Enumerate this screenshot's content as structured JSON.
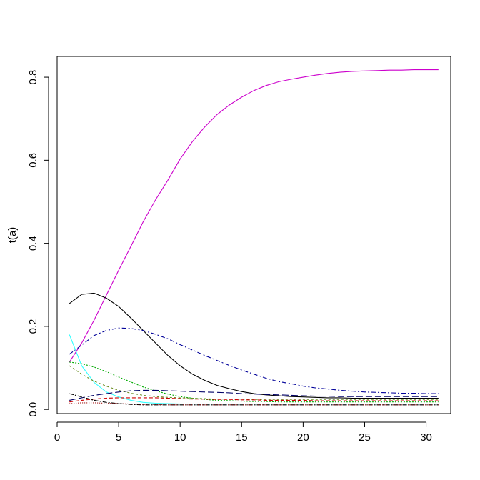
{
  "chart_data": {
    "type": "line",
    "title": "",
    "xlabel": "",
    "ylabel": "t(a)",
    "xlim": [
      0,
      32
    ],
    "ylim": [
      -0.01,
      0.85
    ],
    "x_ticks": [
      0,
      5,
      10,
      15,
      20,
      25,
      30
    ],
    "y_ticks": [
      0.0,
      0.2,
      0.4,
      0.6,
      0.8
    ],
    "x_tick_labels": [
      "0",
      "5",
      "10",
      "15",
      "20",
      "25",
      "30"
    ],
    "y_tick_labels": [
      "0.0",
      "0.2",
      "0.4",
      "0.6",
      "0.8"
    ],
    "grid": false,
    "legend": "none",
    "series": [
      {
        "color": "#cc00cc",
        "dash": "",
        "points": [
          [
            1,
            0.114
          ],
          [
            2,
            0.16
          ],
          [
            3,
            0.215
          ],
          [
            4,
            0.275
          ],
          [
            5,
            0.335
          ],
          [
            6,
            0.393
          ],
          [
            7,
            0.452
          ],
          [
            8,
            0.505
          ],
          [
            9,
            0.552
          ],
          [
            10,
            0.603
          ],
          [
            11,
            0.645
          ],
          [
            12,
            0.68
          ],
          [
            13,
            0.71
          ],
          [
            14,
            0.733
          ],
          [
            15,
            0.752
          ],
          [
            16,
            0.768
          ],
          [
            17,
            0.78
          ],
          [
            18,
            0.789
          ],
          [
            19,
            0.795
          ],
          [
            20,
            0.8
          ],
          [
            21,
            0.805
          ],
          [
            22,
            0.809
          ],
          [
            23,
            0.812
          ],
          [
            24,
            0.814
          ],
          [
            25,
            0.815
          ],
          [
            26,
            0.816
          ],
          [
            27,
            0.817
          ],
          [
            28,
            0.817
          ],
          [
            29,
            0.818
          ],
          [
            30,
            0.818
          ],
          [
            31,
            0.818
          ]
        ]
      },
      {
        "color": "#000000",
        "dash": "",
        "points": [
          [
            1,
            0.255
          ],
          [
            2,
            0.277
          ],
          [
            3,
            0.28
          ],
          [
            4,
            0.268
          ],
          [
            5,
            0.248
          ],
          [
            6,
            0.22
          ],
          [
            7,
            0.19
          ],
          [
            8,
            0.16
          ],
          [
            9,
            0.13
          ],
          [
            10,
            0.105
          ],
          [
            11,
            0.085
          ],
          [
            12,
            0.07
          ],
          [
            13,
            0.058
          ],
          [
            14,
            0.05
          ],
          [
            15,
            0.043
          ],
          [
            16,
            0.038
          ],
          [
            17,
            0.035
          ],
          [
            18,
            0.033
          ],
          [
            19,
            0.031
          ],
          [
            20,
            0.03
          ],
          [
            21,
            0.029
          ],
          [
            22,
            0.028
          ],
          [
            23,
            0.028
          ],
          [
            24,
            0.027
          ],
          [
            25,
            0.027
          ],
          [
            26,
            0.027
          ],
          [
            27,
            0.027
          ],
          [
            28,
            0.027
          ],
          [
            29,
            0.027
          ],
          [
            30,
            0.027
          ],
          [
            31,
            0.027
          ]
        ]
      },
      {
        "color": "#000099",
        "dash": "6,3,2,3",
        "points": [
          [
            1,
            0.133
          ],
          [
            2,
            0.155
          ],
          [
            3,
            0.178
          ],
          [
            4,
            0.19
          ],
          [
            5,
            0.196
          ],
          [
            6,
            0.195
          ],
          [
            7,
            0.19
          ],
          [
            8,
            0.181
          ],
          [
            9,
            0.17
          ],
          [
            10,
            0.156
          ],
          [
            11,
            0.143
          ],
          [
            12,
            0.13
          ],
          [
            13,
            0.118
          ],
          [
            14,
            0.106
          ],
          [
            15,
            0.095
          ],
          [
            16,
            0.085
          ],
          [
            17,
            0.075
          ],
          [
            18,
            0.067
          ],
          [
            19,
            0.062
          ],
          [
            20,
            0.056
          ],
          [
            21,
            0.052
          ],
          [
            22,
            0.049
          ],
          [
            23,
            0.046
          ],
          [
            24,
            0.044
          ],
          [
            25,
            0.042
          ],
          [
            26,
            0.041
          ],
          [
            27,
            0.04
          ],
          [
            28,
            0.039
          ],
          [
            29,
            0.039
          ],
          [
            30,
            0.038
          ],
          [
            31,
            0.038
          ]
        ]
      },
      {
        "color": "#33ffff",
        "dash": "",
        "points": [
          [
            1,
            0.18
          ],
          [
            2,
            0.105
          ],
          [
            3,
            0.065
          ],
          [
            4,
            0.042
          ],
          [
            5,
            0.03
          ],
          [
            6,
            0.022
          ],
          [
            7,
            0.017
          ],
          [
            8,
            0.015
          ],
          [
            9,
            0.014
          ],
          [
            10,
            0.013
          ],
          [
            11,
            0.013
          ],
          [
            12,
            0.013
          ],
          [
            13,
            0.013
          ],
          [
            14,
            0.013
          ],
          [
            15,
            0.013
          ],
          [
            16,
            0.013
          ],
          [
            17,
            0.013
          ],
          [
            18,
            0.013
          ],
          [
            19,
            0.013
          ],
          [
            20,
            0.013
          ],
          [
            21,
            0.013
          ],
          [
            22,
            0.013
          ],
          [
            23,
            0.013
          ],
          [
            24,
            0.013
          ],
          [
            25,
            0.013
          ],
          [
            26,
            0.013
          ],
          [
            27,
            0.013
          ],
          [
            28,
            0.013
          ],
          [
            29,
            0.013
          ],
          [
            30,
            0.013
          ],
          [
            31,
            0.013
          ]
        ]
      },
      {
        "color": "#00aa00",
        "dash": "2,2",
        "points": [
          [
            1,
            0.114
          ],
          [
            2,
            0.11
          ],
          [
            3,
            0.102
          ],
          [
            4,
            0.091
          ],
          [
            5,
            0.078
          ],
          [
            6,
            0.066
          ],
          [
            7,
            0.054
          ],
          [
            8,
            0.045
          ],
          [
            9,
            0.037
          ],
          [
            10,
            0.031
          ],
          [
            11,
            0.027
          ],
          [
            12,
            0.024
          ],
          [
            13,
            0.022
          ],
          [
            14,
            0.021
          ],
          [
            15,
            0.02
          ],
          [
            16,
            0.019
          ],
          [
            17,
            0.019
          ],
          [
            18,
            0.018
          ],
          [
            19,
            0.018
          ],
          [
            20,
            0.018
          ],
          [
            21,
            0.018
          ],
          [
            22,
            0.018
          ],
          [
            23,
            0.018
          ],
          [
            24,
            0.018
          ],
          [
            25,
            0.018
          ],
          [
            26,
            0.018
          ],
          [
            27,
            0.018
          ],
          [
            28,
            0.018
          ],
          [
            29,
            0.018
          ],
          [
            30,
            0.018
          ],
          [
            31,
            0.018
          ]
        ]
      },
      {
        "color": "#6b8e23",
        "dash": "3,3",
        "points": [
          [
            1,
            0.105
          ],
          [
            2,
            0.085
          ],
          [
            3,
            0.068
          ],
          [
            4,
            0.056
          ],
          [
            5,
            0.046
          ],
          [
            6,
            0.039
          ],
          [
            7,
            0.034
          ],
          [
            8,
            0.031
          ],
          [
            9,
            0.029
          ],
          [
            10,
            0.028
          ],
          [
            11,
            0.027
          ],
          [
            12,
            0.026
          ],
          [
            13,
            0.025
          ],
          [
            14,
            0.025
          ],
          [
            15,
            0.025
          ],
          [
            16,
            0.024
          ],
          [
            17,
            0.024
          ],
          [
            18,
            0.024
          ],
          [
            19,
            0.024
          ],
          [
            20,
            0.024
          ],
          [
            21,
            0.024
          ],
          [
            22,
            0.024
          ],
          [
            23,
            0.024
          ],
          [
            24,
            0.024
          ],
          [
            25,
            0.024
          ],
          [
            26,
            0.024
          ],
          [
            27,
            0.024
          ],
          [
            28,
            0.024
          ],
          [
            29,
            0.024
          ],
          [
            30,
            0.024
          ],
          [
            31,
            0.024
          ]
        ]
      },
      {
        "color": "#000066",
        "dash": "9,4",
        "points": [
          [
            1,
            0.022
          ],
          [
            2,
            0.028
          ],
          [
            3,
            0.034
          ],
          [
            4,
            0.038
          ],
          [
            5,
            0.042
          ],
          [
            6,
            0.045
          ],
          [
            7,
            0.046
          ],
          [
            8,
            0.046
          ],
          [
            9,
            0.045
          ],
          [
            10,
            0.044
          ],
          [
            11,
            0.043
          ],
          [
            12,
            0.042
          ],
          [
            13,
            0.041
          ],
          [
            14,
            0.04
          ],
          [
            15,
            0.038
          ],
          [
            16,
            0.037
          ],
          [
            17,
            0.036
          ],
          [
            18,
            0.035
          ],
          [
            19,
            0.034
          ],
          [
            20,
            0.033
          ],
          [
            21,
            0.032
          ],
          [
            22,
            0.032
          ],
          [
            23,
            0.031
          ],
          [
            24,
            0.031
          ],
          [
            25,
            0.031
          ],
          [
            26,
            0.031
          ],
          [
            27,
            0.031
          ],
          [
            28,
            0.031
          ],
          [
            29,
            0.031
          ],
          [
            30,
            0.031
          ],
          [
            31,
            0.031
          ]
        ]
      },
      {
        "color": "#cc0000",
        "dash": "5,3",
        "points": [
          [
            1,
            0.018
          ],
          [
            2,
            0.022
          ],
          [
            3,
            0.025
          ],
          [
            4,
            0.027
          ],
          [
            5,
            0.028
          ],
          [
            6,
            0.028
          ],
          [
            7,
            0.028
          ],
          [
            8,
            0.028
          ],
          [
            9,
            0.027
          ],
          [
            10,
            0.026
          ],
          [
            11,
            0.025
          ],
          [
            12,
            0.025
          ],
          [
            13,
            0.024
          ],
          [
            14,
            0.024
          ],
          [
            15,
            0.023
          ],
          [
            16,
            0.023
          ],
          [
            17,
            0.022
          ],
          [
            18,
            0.022
          ],
          [
            19,
            0.022
          ],
          [
            20,
            0.022
          ],
          [
            21,
            0.021
          ],
          [
            22,
            0.021
          ],
          [
            23,
            0.021
          ],
          [
            24,
            0.021
          ],
          [
            25,
            0.021
          ],
          [
            26,
            0.021
          ],
          [
            27,
            0.021
          ],
          [
            28,
            0.021
          ],
          [
            29,
            0.021
          ],
          [
            30,
            0.021
          ],
          [
            31,
            0.021
          ]
        ]
      },
      {
        "color": "#000000",
        "dash": "6,2,2,2",
        "points": [
          [
            1,
            0.038
          ],
          [
            2,
            0.03
          ],
          [
            3,
            0.022
          ],
          [
            4,
            0.017
          ],
          [
            5,
            0.014
          ],
          [
            6,
            0.012
          ],
          [
            7,
            0.011
          ],
          [
            8,
            0.011
          ],
          [
            9,
            0.011
          ],
          [
            10,
            0.011
          ],
          [
            11,
            0.011
          ],
          [
            12,
            0.011
          ],
          [
            13,
            0.011
          ],
          [
            14,
            0.011
          ],
          [
            15,
            0.011
          ],
          [
            16,
            0.011
          ],
          [
            17,
            0.011
          ],
          [
            18,
            0.011
          ],
          [
            19,
            0.011
          ],
          [
            20,
            0.011
          ],
          [
            21,
            0.011
          ],
          [
            22,
            0.011
          ],
          [
            23,
            0.011
          ],
          [
            24,
            0.011
          ],
          [
            25,
            0.011
          ],
          [
            26,
            0.011
          ],
          [
            27,
            0.011
          ],
          [
            28,
            0.011
          ],
          [
            29,
            0.011
          ],
          [
            30,
            0.011
          ],
          [
            31,
            0.011
          ]
        ]
      },
      {
        "color": "#990000",
        "dash": "1,2",
        "points": [
          [
            1,
            0.014
          ],
          [
            2,
            0.016
          ],
          [
            3,
            0.016
          ],
          [
            4,
            0.015
          ],
          [
            5,
            0.014
          ],
          [
            6,
            0.013
          ],
          [
            7,
            0.012
          ],
          [
            8,
            0.012
          ],
          [
            9,
            0.011
          ],
          [
            10,
            0.011
          ],
          [
            11,
            0.011
          ],
          [
            12,
            0.011
          ],
          [
            13,
            0.011
          ],
          [
            14,
            0.011
          ],
          [
            15,
            0.011
          ],
          [
            16,
            0.011
          ],
          [
            17,
            0.011
          ],
          [
            18,
            0.011
          ],
          [
            19,
            0.011
          ],
          [
            20,
            0.011
          ],
          [
            21,
            0.011
          ],
          [
            22,
            0.011
          ],
          [
            23,
            0.011
          ],
          [
            24,
            0.011
          ],
          [
            25,
            0.011
          ],
          [
            26,
            0.011
          ],
          [
            27,
            0.011
          ],
          [
            28,
            0.011
          ],
          [
            29,
            0.011
          ],
          [
            30,
            0.011
          ],
          [
            31,
            0.011
          ]
        ]
      }
    ]
  }
}
